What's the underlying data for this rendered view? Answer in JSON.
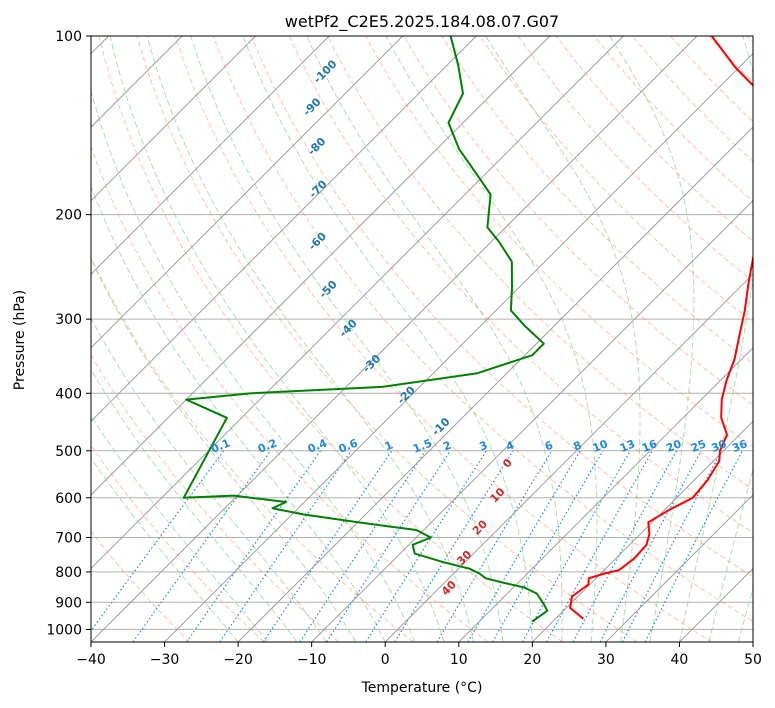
{
  "chart_data": {
    "type": "line",
    "title": "wetPf2_C2E5.2025.184.08.07.G07",
    "xlabel": "Temperature (°C)",
    "ylabel": "Pressure (hPa)",
    "xlim": [
      -40,
      50
    ],
    "ylim": [
      1050,
      100
    ],
    "y_scale": "log",
    "grid": true,
    "x_ticks": [
      -40,
      -30,
      -20,
      -10,
      0,
      10,
      20,
      30,
      40,
      50
    ],
    "x_tick_labels": [
      "−40",
      "−30",
      "−20",
      "−10",
      "0",
      "10",
      "20",
      "30",
      "40",
      "50"
    ],
    "y_ticks": [
      100,
      200,
      300,
      400,
      500,
      600,
      700,
      800,
      900,
      1000
    ],
    "y_tick_labels": [
      "100",
      "200",
      "300",
      "400",
      "500",
      "600",
      "700",
      "800",
      "900",
      "1000"
    ],
    "skew_deg_per_px_ratio": 1,
    "series": [
      {
        "color": "#ff0000",
        "points": [
          [
            23.8,
            960
          ],
          [
            20.5,
            920
          ],
          [
            19.2,
            880
          ],
          [
            19.8,
            840
          ],
          [
            19.0,
            820
          ],
          [
            20.5,
            805
          ],
          [
            22.0,
            795
          ],
          [
            22.5,
            760
          ],
          [
            22.3,
            720
          ],
          [
            21.2,
            690
          ],
          [
            19.5,
            660
          ],
          [
            20.6,
            630
          ],
          [
            22.2,
            600
          ],
          [
            21.8,
            560
          ],
          [
            20.8,
            520
          ],
          [
            19.5,
            500
          ],
          [
            18.3,
            470
          ],
          [
            15.2,
            440
          ],
          [
            12.8,
            410
          ],
          [
            10.8,
            380
          ],
          [
            9.0,
            350
          ],
          [
            6.5,
            320
          ],
          [
            3.8,
            290
          ],
          [
            0.5,
            260
          ],
          [
            -3.0,
            230
          ],
          [
            -6.2,
            205
          ],
          [
            -9.8,
            180
          ],
          [
            -13.5,
            160
          ],
          [
            -17.6,
            140
          ],
          [
            -23.5,
            125
          ],
          [
            -30.5,
            113
          ],
          [
            -38.0,
            100
          ]
        ]
      },
      {
        "color": "#008000",
        "points": [
          [
            17.2,
            970
          ],
          [
            17.8,
            930
          ],
          [
            16.0,
            900
          ],
          [
            14.0,
            870
          ],
          [
            11.5,
            850
          ],
          [
            8.2,
            835
          ],
          [
            5.0,
            820
          ],
          [
            3.5,
            805
          ],
          [
            1.5,
            790
          ],
          [
            -3.0,
            770
          ],
          [
            -8.0,
            745
          ],
          [
            -9.5,
            720
          ],
          [
            -8.0,
            700
          ],
          [
            -11.0,
            680
          ],
          [
            -20.0,
            660
          ],
          [
            -28.5,
            640
          ],
          [
            -33.5,
            625
          ],
          [
            -32.5,
            610
          ],
          [
            -40.5,
            595
          ],
          [
            -47.0,
            600
          ],
          [
            -52.0,
            440
          ],
          [
            -60.0,
            410
          ],
          [
            -52.0,
            400
          ],
          [
            -35.0,
            390
          ],
          [
            -24.0,
            370
          ],
          [
            -19.0,
            345
          ],
          [
            -19.0,
            330
          ],
          [
            -24.0,
            308
          ],
          [
            -28.0,
            290
          ],
          [
            -31.0,
            265
          ],
          [
            -34.5,
            240
          ],
          [
            -39.0,
            222
          ],
          [
            -42.5,
            210
          ],
          [
            -46.5,
            185
          ],
          [
            -51.5,
            170
          ],
          [
            -57.0,
            155
          ],
          [
            -62.0,
            140
          ],
          [
            -64.0,
            125
          ],
          [
            -68.5,
            112
          ],
          [
            -73.5,
            100
          ]
        ]
      }
    ],
    "dry_adiabat_labels": [
      "-100",
      "-90",
      "-80",
      "-70",
      "-60",
      "-50",
      "-40",
      "-30",
      "-20",
      "-10"
    ],
    "moist_adiabat_labels": [
      "0",
      "10",
      "20",
      "30",
      "40"
    ],
    "mixing_ratio_labels": [
      "0.1",
      "0.2",
      "0.4",
      "0.6",
      "1",
      "1.5",
      "2",
      "3",
      "4",
      "6",
      "8",
      "10",
      "13",
      "16",
      "20",
      "25",
      "30",
      "36"
    ],
    "colors": {
      "temperature": "#ff0000",
      "dewpoint": "#008000",
      "isotherm": "#9e9e9e",
      "grid": "#b0b0b0",
      "dry_adiabat": "#ff8c69",
      "moist_adiabat": "#8fce8f",
      "mixing_ratio": "#1e88e5",
      "dry_label": "#1f77b4",
      "moist_label": "#d62728",
      "zero_label": "#808080"
    }
  }
}
